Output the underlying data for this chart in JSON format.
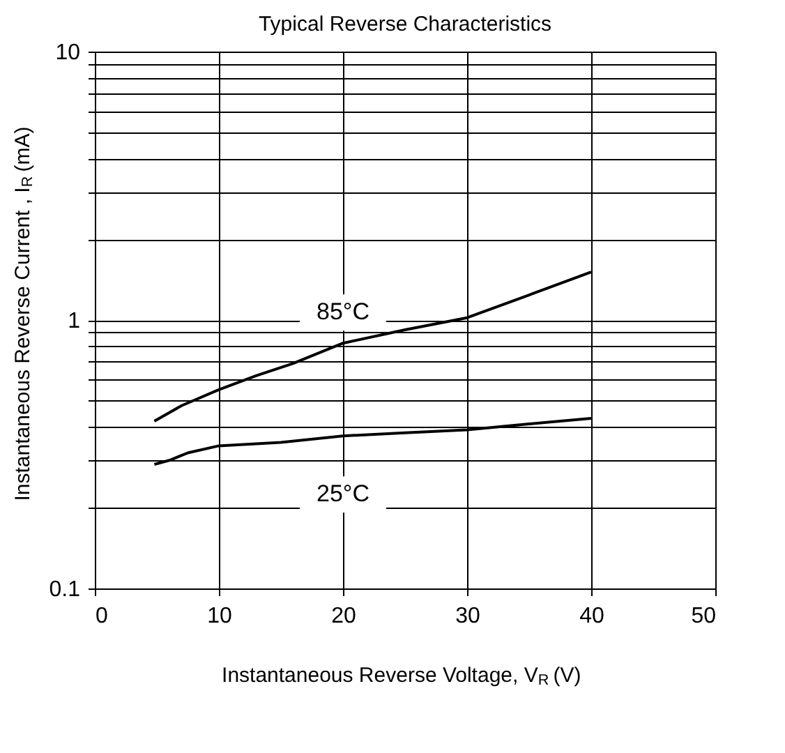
{
  "chart_data": {
    "type": "line",
    "title": "Typical Reverse Characteristics",
    "xlabel": "Instantaneous Reverse Voltage, V$_{R}$ (V)",
    "ylabel": "Instantaneous Reverse Current , I$_{R}$ (mA)",
    "series": [
      {
        "name": "85°C",
        "color": "#000000",
        "x": [
          4.8,
          7,
          10,
          13,
          16,
          20,
          25,
          30,
          35,
          40
        ],
        "values": [
          0.42,
          0.48,
          0.55,
          0.62,
          0.69,
          0.82,
          0.92,
          1.02,
          1.24,
          1.51
        ]
      },
      {
        "name": "25°C",
        "color": "#000000",
        "x": [
          4.8,
          6,
          7.5,
          10,
          15,
          20,
          25,
          30,
          35,
          40
        ],
        "values": [
          0.29,
          0.3,
          0.32,
          0.34,
          0.35,
          0.37,
          0.38,
          0.39,
          0.41,
          0.43
        ]
      }
    ],
    "xlim": [
      0,
      50
    ],
    "xticks": [
      0,
      10,
      20,
      30,
      40,
      50
    ],
    "ylim": [
      0.1,
      10
    ],
    "log": true,
    "yticks": [
      0.1,
      {
        "value": 0.2,
        "label": null
      },
      {
        "value": 0.3,
        "label": null
      },
      {
        "value": 0.4,
        "label": null
      },
      {
        "value": 0.5,
        "label": null
      },
      {
        "value": 0.6,
        "label": null
      },
      {
        "value": 0.7,
        "label": null
      },
      {
        "value": 0.8,
        "label": null
      },
      {
        "value": 0.9,
        "label": null
      },
      1,
      {
        "value": 2,
        "label": null
      },
      {
        "value": 3,
        "label": null
      },
      {
        "value": 4,
        "label": null
      },
      {
        "value": 5,
        "label": null
      },
      {
        "value": 6,
        "label": null
      },
      {
        "value": 7,
        "label": null
      },
      {
        "value": 8,
        "label": null
      },
      {
        "value": 9,
        "label": null
      },
      10
    ],
    "grid": true,
    "marker": "none",
    "line_style": "solid",
    "legend": false
  }
}
